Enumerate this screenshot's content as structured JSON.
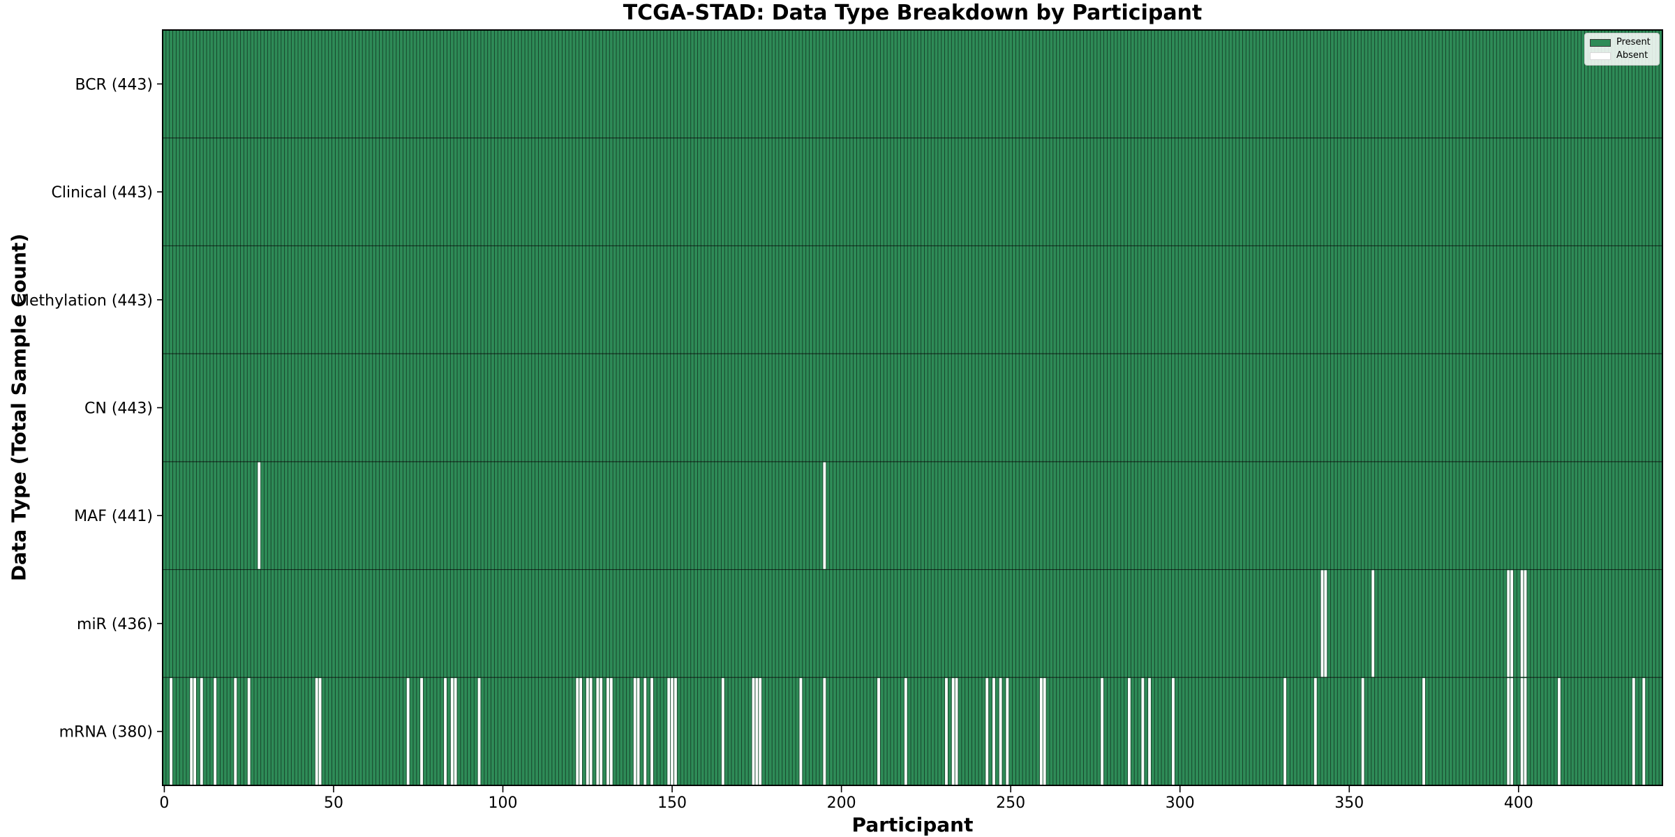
{
  "chart_data": {
    "type": "heatmap",
    "title": "TCGA-STAD: Data Type Breakdown by Participant",
    "xlabel": "Participant",
    "ylabel": "Data Type (Total Sample Count)",
    "n_participants": 443,
    "x_range": [
      0,
      443
    ],
    "grid": false,
    "legend_position": "upper right",
    "x_tick_values": [
      0,
      50,
      100,
      150,
      200,
      250,
      300,
      350,
      400
    ],
    "x_tick_labels": [
      "0",
      "50",
      "100",
      "150",
      "200",
      "250",
      "300",
      "350",
      "400"
    ],
    "rows": [
      {
        "name": "BCR",
        "label": "BCR (443)",
        "total": 443,
        "absent_participants": []
      },
      {
        "name": "Clinical",
        "label": "Clinical (443)",
        "total": 443,
        "absent_participants": []
      },
      {
        "name": "Methylation",
        "label": "Methylation (443)",
        "total": 443,
        "absent_participants": []
      },
      {
        "name": "CN",
        "label": "CN (443)",
        "total": 443,
        "absent_participants": []
      },
      {
        "name": "MAF",
        "label": "MAF (441)",
        "total": 441,
        "absent_participants": [
          28,
          195
        ]
      },
      {
        "name": "miR",
        "label": "miR (436)",
        "total": 436,
        "absent_participants": [
          342,
          343,
          357,
          397,
          398,
          401,
          402
        ]
      },
      {
        "name": "mRNA",
        "label": "mRNA (380)",
        "total": 380,
        "absent_participants": [
          2,
          8,
          9,
          11,
          15,
          21,
          25,
          45,
          46,
          72,
          76,
          83,
          85,
          86,
          93,
          122,
          123,
          125,
          126,
          128,
          129,
          131,
          132,
          139,
          140,
          142,
          144,
          149,
          150,
          151,
          165,
          174,
          175,
          176,
          188,
          195,
          211,
          219,
          231,
          233,
          234,
          243,
          245,
          247,
          249,
          259,
          260,
          277,
          285,
          289,
          291,
          298,
          331,
          340,
          354,
          372,
          397,
          398,
          401,
          402,
          412,
          434,
          437
        ]
      }
    ],
    "legend": [
      {
        "label": "Present",
        "color": "#2e8b57"
      },
      {
        "label": "Absent",
        "color": "#ffffff"
      }
    ],
    "colors": {
      "present": "#2e8b57",
      "absent": "#ffffff",
      "cell_edge": "rgba(0,0,0,0.55)",
      "row_divider": "rgba(0,0,0,0.65)",
      "axis": "#000000",
      "background": "#ffffff"
    }
  }
}
